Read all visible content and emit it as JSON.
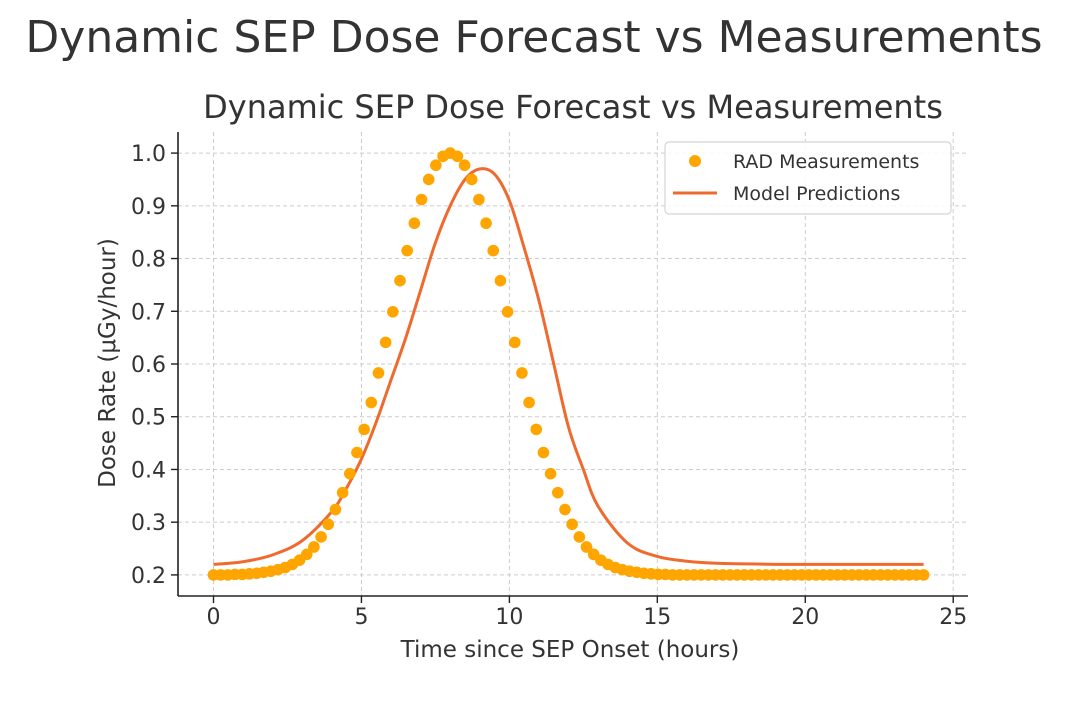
{
  "page_title": "Dynamic SEP Dose Forecast vs Measurements",
  "colors": {
    "measurements": "#FFA500",
    "model": "#EE6A2E",
    "grid": "#cccccc",
    "text": "#333333"
  },
  "chart_data": {
    "type": "scatter",
    "title": "Dynamic SEP Dose Forecast vs Measurements",
    "xlabel": "Time since SEP Onset (hours)",
    "ylabel": "Dose Rate (μGy/hour)",
    "xlim": [
      -1.2,
      25.5
    ],
    "ylim": [
      0.16,
      1.04
    ],
    "xticks": [
      0,
      5,
      10,
      15,
      20,
      25
    ],
    "yticks": [
      0.2,
      0.3,
      0.4,
      0.5,
      0.6,
      0.7,
      0.8,
      0.9,
      1.0
    ],
    "grid": true,
    "legend_position": "top-right",
    "series": [
      {
        "name": "RAD Measurements",
        "kind": "scatter",
        "x": [
          0,
          0.242,
          0.485,
          0.727,
          0.97,
          1.212,
          1.455,
          1.697,
          1.939,
          2.182,
          2.424,
          2.667,
          2.909,
          3.152,
          3.394,
          3.636,
          3.879,
          4.121,
          4.364,
          4.606,
          4.848,
          5.091,
          5.333,
          5.576,
          5.818,
          6.061,
          6.303,
          6.545,
          6.788,
          7.03,
          7.273,
          7.515,
          7.758,
          8.0,
          8.242,
          8.485,
          8.727,
          8.97,
          9.212,
          9.455,
          9.697,
          9.939,
          10.182,
          10.424,
          10.667,
          10.909,
          11.152,
          11.394,
          11.636,
          11.879,
          12.121,
          12.364,
          12.606,
          12.848,
          13.091,
          13.333,
          13.576,
          13.818,
          14.061,
          14.303,
          14.545,
          14.788,
          15.03,
          15.273,
          15.515,
          15.758,
          16.0,
          16.242,
          16.485,
          16.727,
          16.97,
          17.212,
          17.455,
          17.697,
          17.939,
          18.182,
          18.424,
          18.667,
          18.909,
          19.152,
          19.394,
          19.636,
          19.879,
          20.121,
          20.364,
          20.606,
          20.848,
          21.091,
          21.333,
          21.576,
          21.818,
          22.061,
          22.303,
          22.545,
          22.788,
          23.03,
          23.273,
          23.515,
          23.758,
          24.0
        ],
        "y": [
          0.2,
          0.2,
          0.2,
          0.201,
          0.201,
          0.202,
          0.203,
          0.205,
          0.207,
          0.21,
          0.214,
          0.22,
          0.228,
          0.239,
          0.253,
          0.272,
          0.296,
          0.324,
          0.356,
          0.392,
          0.432,
          0.476,
          0.527,
          0.583,
          0.641,
          0.699,
          0.758,
          0.815,
          0.867,
          0.912,
          0.95,
          0.977,
          0.994,
          1.0,
          0.994,
          0.977,
          0.95,
          0.912,
          0.867,
          0.815,
          0.758,
          0.699,
          0.641,
          0.583,
          0.527,
          0.476,
          0.432,
          0.392,
          0.356,
          0.324,
          0.296,
          0.272,
          0.253,
          0.239,
          0.228,
          0.22,
          0.214,
          0.21,
          0.207,
          0.205,
          0.203,
          0.202,
          0.201,
          0.201,
          0.2,
          0.2,
          0.2,
          0.2,
          0.2,
          0.2,
          0.2,
          0.2,
          0.2,
          0.2,
          0.2,
          0.2,
          0.2,
          0.2,
          0.2,
          0.2,
          0.2,
          0.2,
          0.2,
          0.2,
          0.2,
          0.2,
          0.2,
          0.2,
          0.2,
          0.2,
          0.2,
          0.2,
          0.2,
          0.2,
          0.2,
          0.2,
          0.2,
          0.2,
          0.2,
          0.2
        ]
      },
      {
        "name": "Model Predictions",
        "kind": "line",
        "x": [
          0,
          1,
          2,
          3,
          4,
          4.5,
          5,
          5.5,
          6,
          6.5,
          7,
          7.5,
          8,
          8.5,
          9,
          9.5,
          10,
          10.5,
          11,
          11.5,
          12,
          12.5,
          13,
          14,
          15,
          16,
          17,
          18,
          19,
          20,
          21,
          22,
          23,
          24
        ],
        "y": [
          0.22,
          0.225,
          0.238,
          0.265,
          0.32,
          0.365,
          0.42,
          0.49,
          0.57,
          0.65,
          0.74,
          0.83,
          0.9,
          0.95,
          0.97,
          0.96,
          0.91,
          0.82,
          0.72,
          0.6,
          0.48,
          0.4,
          0.33,
          0.26,
          0.235,
          0.226,
          0.222,
          0.221,
          0.22,
          0.22,
          0.22,
          0.22,
          0.22,
          0.22
        ]
      }
    ]
  }
}
